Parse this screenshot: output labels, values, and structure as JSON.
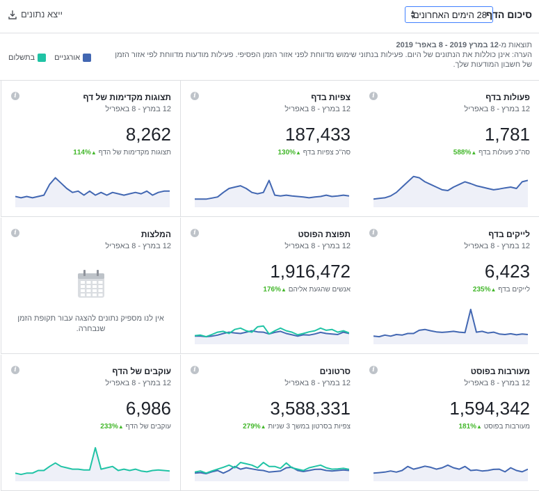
{
  "header": {
    "title": "סיכום הדף",
    "range_value": "28 הימים האחרונים",
    "export_label": "ייצא נתונים"
  },
  "info": {
    "results_prefix": "תוצאות מ-",
    "results_dates": "12 במרץ 2019 - 8 באפר' 2019",
    "note": "הערה: אינן כוללות את הנתונים של היום. פעילות בנתוני שימוש מדווחת לפני אזור הזמן הפסיפי. פעילות מודעות מדווחת לפי אזור הזמן של חשבון המודעות שלך."
  },
  "legend": {
    "organic": "אורגניים",
    "paid": "בתשלום"
  },
  "colors": {
    "organic": "#4267b2",
    "paid": "#20c3a5",
    "up": "#42b72a"
  },
  "cards": [
    {
      "title": "פעולות בדף",
      "sub": "12 במרץ - 8 באפריל",
      "value": "1,781",
      "metric_label": "סה\"כ פעולות בדף",
      "pct": "588%",
      "organic": [
        2,
        2.3,
        2.5,
        3.2,
        4.5,
        6.5,
        8.5,
        10.5,
        10,
        8.5,
        7.5,
        6.5,
        5.5,
        5.2,
        6.5,
        7.5,
        8.5,
        7.8,
        7,
        6.5,
        6,
        5.5,
        5.8,
        6.2,
        6.5,
        6,
        8.5,
        9
      ]
    },
    {
      "title": "צפיות בדף",
      "sub": "12 במרץ - 8 באפריל",
      "value": "187,433",
      "metric_label": "סה\"כ צפיות בדף",
      "pct": "130%",
      "organic": [
        2,
        2,
        2,
        2.4,
        2.8,
        4.5,
        6,
        6.5,
        7,
        6,
        4.5,
        4,
        4.5,
        9,
        3.5,
        3.2,
        3.5,
        3.2,
        3,
        2.8,
        2.5,
        2.8,
        3,
        3.5,
        3,
        3.2,
        3.5,
        3.2
      ]
    },
    {
      "title": "תצוגות מקדימות של דף",
      "sub": "12 במרץ - 8 באפריל",
      "value": "8,262",
      "metric_label": "תצוגות מקדימות של הדף",
      "pct": "114%",
      "organic": [
        3,
        2.5,
        3,
        2.5,
        3,
        3.5,
        7.5,
        10,
        8,
        6,
        4.5,
        5,
        3.5,
        5,
        3.5,
        4.5,
        3.5,
        4.5,
        4,
        3.5,
        4,
        4.5,
        4,
        5,
        3.5,
        4.5,
        5,
        5
      ]
    },
    {
      "title": "לייקים בדף",
      "sub": "12 במרץ - 8 באפריל",
      "value": "6,423",
      "metric_label": "לייקים בדף",
      "pct": "235%",
      "organic": [
        2,
        1.8,
        2.4,
        2,
        2.6,
        2.4,
        3,
        3,
        4.2,
        4.5,
        4,
        3.6,
        3.4,
        3.6,
        3.8,
        3.5,
        3.3,
        12,
        3.5,
        3.8,
        3.2,
        3.5,
        2.8,
        2.6,
        2.9,
        2.5,
        2.8,
        2.6
      ]
    },
    {
      "title": "תפוצת הפוסט",
      "sub": "12 במרץ - 8 באפריל",
      "value": "1,916,472",
      "metric_label": "אנשים שהגעת אליהם",
      "pct": "176%",
      "organic": [
        2,
        2,
        1.8,
        2,
        2.4,
        3,
        3.5,
        3.2,
        3,
        3.5,
        4,
        3.6,
        3.5,
        2.8,
        3.4,
        3.8,
        3,
        2.5,
        2,
        2.5,
        2.4,
        2.8,
        3.4,
        3,
        2.8,
        2.6,
        3.5,
        3
      ],
      "paid": [
        2.2,
        2.4,
        1.8,
        2.6,
        3.5,
        3.8,
        3,
        4.5,
        5,
        4,
        3.5,
        5.5,
        5.8,
        2.8,
        4,
        5,
        4,
        3.5,
        2.5,
        3,
        3.6,
        4,
        5,
        4.2,
        4.5,
        3.5,
        4,
        3.2
      ]
    },
    {
      "title": "המלצות",
      "sub": "12 במרץ - 8 באפריל",
      "empty_text": "אין לנו מספיק נתונים להצגה עבור תקופת הזמן שנבחרה."
    },
    {
      "title": "מעורבות בפוסט",
      "sub": "12 במרץ - 8 באפריל",
      "value": "1,594,342",
      "metric_label": "מעורבות בפוסט",
      "pct": "181%",
      "organic": [
        2,
        2.2,
        2.4,
        2.8,
        2.4,
        3,
        4.5,
        3.5,
        4,
        4.6,
        4.2,
        3.5,
        4,
        5,
        4,
        3.5,
        4.5,
        3,
        3.2,
        2.8,
        3,
        3.4,
        3.5,
        2.5,
        4,
        3,
        2.5,
        3.5
      ]
    },
    {
      "title": "סרטונים",
      "sub": "12 במרץ - 8 באפריל",
      "value": "3,588,331",
      "metric_label": "צפיות בסרטון במשך 3 שניות",
      "pct": "279%",
      "organic": [
        2,
        2.2,
        1.8,
        2.5,
        3,
        2,
        3,
        4.5,
        3.5,
        4,
        3.6,
        3.2,
        3,
        2.4,
        2.6,
        2.8,
        4,
        4.2,
        3,
        2.6,
        3,
        3.4,
        3.5,
        3,
        2.8,
        3,
        3.2,
        3
      ],
      "paid": [
        2.4,
        2.8,
        2,
        2.8,
        3.5,
        4.2,
        5,
        4,
        6,
        5.5,
        5,
        4,
        6,
        4.5,
        4.5,
        3.8,
        5.8,
        4,
        3.5,
        3,
        4,
        4.5,
        5,
        4,
        3.5,
        3.6,
        3.8,
        3.4
      ]
    },
    {
      "title": "עוקבים של הדף",
      "sub": "12 במרץ - 8 באפריל",
      "value": "6,986",
      "metric_label": "עוקבים של הדף",
      "pct": "233%",
      "paid": [
        2,
        1.5,
        2,
        2,
        3,
        3,
        4.5,
        5.8,
        4.5,
        4,
        3.5,
        3.5,
        3.2,
        3.2,
        11.5,
        3.5,
        4,
        4.5,
        3,
        3.5,
        3,
        3.5,
        2.8,
        2.5,
        3,
        3.2,
        3,
        2.8
      ]
    }
  ]
}
